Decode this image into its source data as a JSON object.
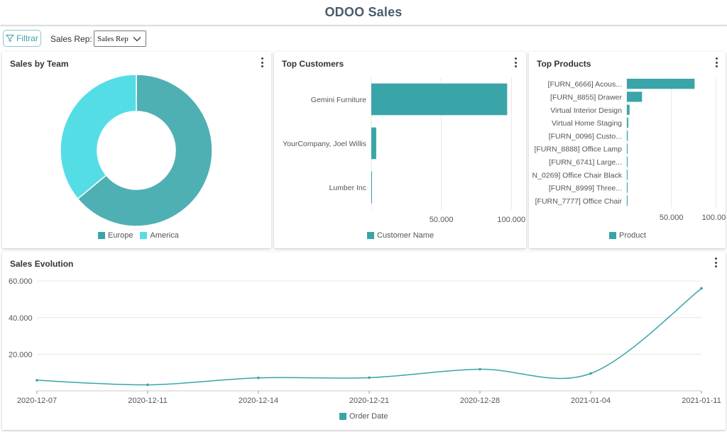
{
  "header": {
    "title": "ODOO Sales"
  },
  "filterbar": {
    "filter_label": "Filtrar",
    "salesrep_label": "Sales Rep:",
    "salesrep_value": "Sales Rep"
  },
  "colors": {
    "teal": "#3aa5a8",
    "cyan": "#55dde6",
    "grid": "#e6e6e6"
  },
  "cards": {
    "sales_by_team": {
      "title": "Sales by Team",
      "chart_data": {
        "type": "pie",
        "labels": [
          "Europe",
          "America"
        ],
        "values": [
          64,
          36
        ],
        "colors": [
          "#4fb0b3",
          "#55dde6"
        ],
        "legend": "bottom"
      },
      "legend": [
        {
          "label": "Europe",
          "color": "#3aa5a8"
        },
        {
          "label": "America",
          "color": "#55dde6"
        }
      ]
    },
    "top_customers": {
      "title": "Top Customers",
      "chart_data": {
        "type": "bar",
        "orientation": "horizontal",
        "categories": [
          "Gemini Furniture",
          "YourCompany, Joel Willis",
          "Lumber Inc"
        ],
        "values": [
          97000,
          3500,
          500
        ],
        "xlim": [
          0,
          110000
        ],
        "ticks": [
          50000,
          100000
        ],
        "tick_labels": [
          "50.000",
          "100.000"
        ],
        "grid": true,
        "legend": "bottom"
      },
      "legend_label": "Customer Name"
    },
    "top_products": {
      "title": "Top Products",
      "chart_data": {
        "type": "bar",
        "orientation": "horizontal",
        "categories": [
          "[FURN_6666] Acous...",
          "[FURN_8855] Drawer",
          "Virtual Interior Design",
          "Virtual Home Staging",
          "[FURN_0096] Custo...",
          "[FURN_8888] Office Lamp",
          "[FURN_6741] Large...",
          "N_0269] Office Chair Black",
          "[FURN_8999] Three...",
          "[FURN_7777] Office Chair"
        ],
        "values": [
          76000,
          17000,
          3000,
          1500,
          1000,
          800,
          700,
          600,
          400,
          300
        ],
        "xlim": [
          0,
          110000
        ],
        "ticks": [
          50000,
          100000
        ],
        "tick_labels": [
          "50.000",
          "100.000"
        ],
        "grid": true,
        "legend": "bottom"
      },
      "legend_label": "Product"
    },
    "sales_evolution": {
      "title": "Sales Evolution",
      "chart_data": {
        "type": "line",
        "x": [
          "2020-12-07",
          "2020-12-11",
          "2020-12-14",
          "2020-12-21",
          "2020-12-28",
          "2021-01-04",
          "2021-01-11"
        ],
        "y": [
          5800,
          3300,
          7100,
          7200,
          11800,
          9500,
          56000
        ],
        "ylim": [
          0,
          62000
        ],
        "yticks": [
          20000,
          40000,
          60000
        ],
        "ytick_labels": [
          "20.000",
          "40.000",
          "60.000"
        ],
        "grid": true,
        "legend": "bottom"
      },
      "legend_label": "Order Date"
    }
  }
}
